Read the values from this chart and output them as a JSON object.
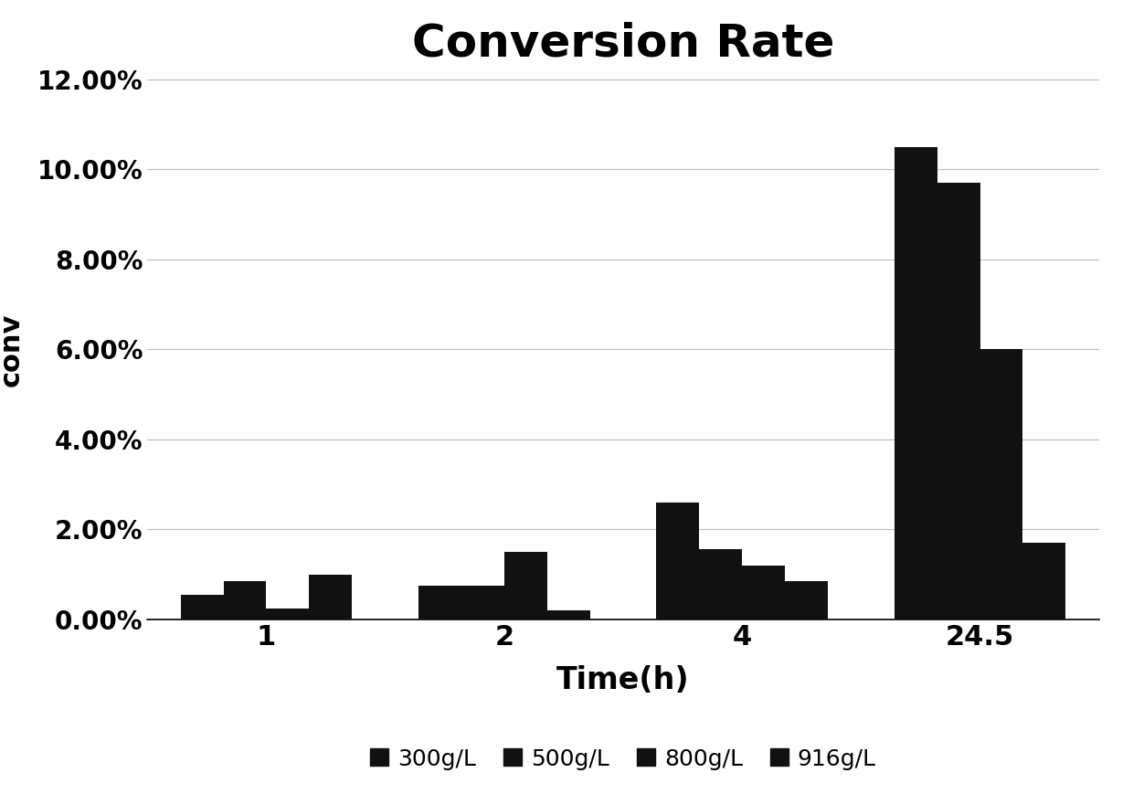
{
  "title": "Conversion Rate",
  "xlabel": "Time(h)",
  "ylabel": "conv",
  "time_labels": [
    "1",
    "2",
    "4",
    "24.5"
  ],
  "series_labels": [
    "300g/L",
    "500g/L",
    "800g/L",
    "916g/L"
  ],
  "values": {
    "300g/L": [
      0.0055,
      0.0075,
      0.026,
      0.105
    ],
    "500g/L": [
      0.0085,
      0.0075,
      0.0155,
      0.097
    ],
    "800g/L": [
      0.0025,
      0.015,
      0.012,
      0.06
    ],
    "916g/L": [
      0.01,
      0.002,
      0.0085,
      0.017
    ]
  },
  "bar_color": "#111111",
  "ylim": [
    0,
    0.12
  ],
  "yticks": [
    0.0,
    0.02,
    0.04,
    0.06,
    0.08,
    0.1,
    0.12
  ],
  "ytick_labels": [
    "0.00%",
    "2.00%",
    "4.00%",
    "6.00%",
    "8.00%",
    "10.00%",
    "12.00%"
  ],
  "title_fontsize": 36,
  "axis_label_fontsize": 22,
  "tick_fontsize": 20,
  "legend_fontsize": 18,
  "background_color": "#ffffff",
  "grid_color": "#bbbbbb"
}
